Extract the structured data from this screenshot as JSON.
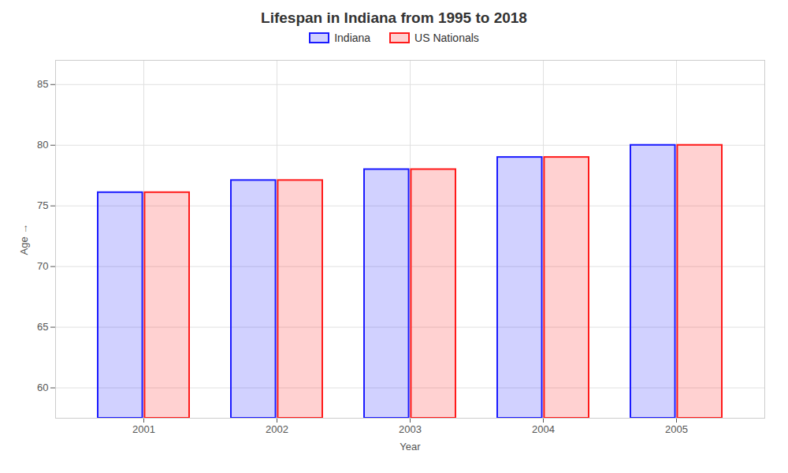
{
  "chart_data": {
    "type": "bar",
    "title": "Lifespan in Indiana from 1995 to 2018",
    "xlabel": "Year",
    "ylabel": "Age",
    "categories": [
      "2001",
      "2002",
      "2003",
      "2004",
      "2005"
    ],
    "series": [
      {
        "name": "Indiana",
        "color": "#1a1aff",
        "values": [
          76.1,
          77.1,
          78.0,
          79.0,
          80.0
        ]
      },
      {
        "name": "US Nationals",
        "color": "#ff1a1a",
        "values": [
          76.1,
          77.1,
          78.0,
          79.0,
          80.0
        ]
      }
    ],
    "ylim": [
      57.5,
      87
    ],
    "yticks": [
      60,
      65,
      70,
      75,
      80,
      85
    ],
    "grid": true,
    "legend": "top"
  }
}
